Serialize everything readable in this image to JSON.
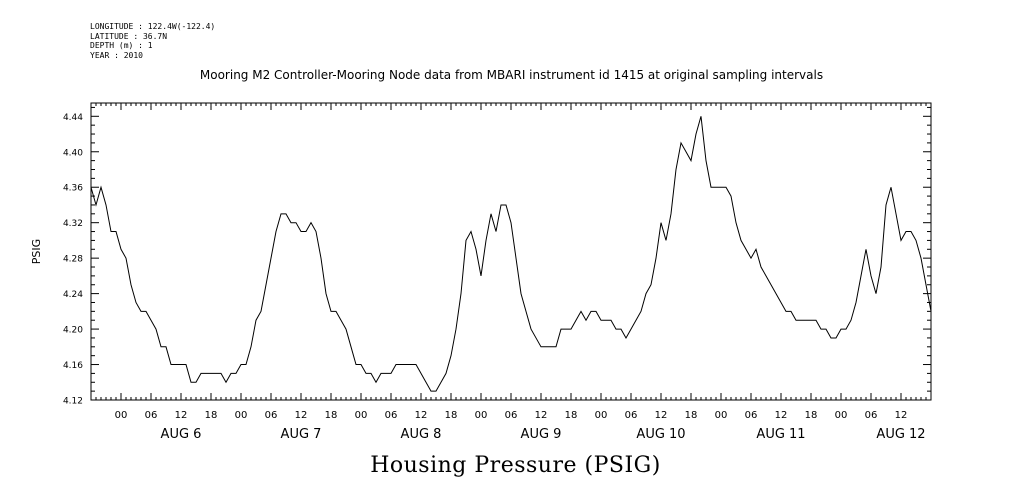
{
  "header": {
    "longitude": "LONGITUDE : 122.4W(-122.4)",
    "latitude": "LATITUDE : 36.7N",
    "depth": "DEPTH (m) : 1",
    "year": "YEAR : 2010"
  },
  "title": "Mooring M2 Controller-Mooring Node data from MBARI instrument id 1415 at original sampling intervals",
  "footer_title": "Housing Pressure (PSIG)",
  "chart_data": {
    "type": "line",
    "title": "Mooring M2 Controller-Mooring Node data from MBARI instrument id 1415 at original sampling intervals",
    "ylabel": "PSIG",
    "xlabel": "",
    "ylim": [
      4.12,
      4.455
    ],
    "yticks": [
      "4.12",
      "4.16",
      "4.20",
      "4.24",
      "4.28",
      "4.32",
      "4.36",
      "4.40",
      "4.44"
    ],
    "xlim_hours_from_aug5_18": [
      0,
      168
    ],
    "hour_tick_labels": [
      "00",
      "06",
      "12",
      "18"
    ],
    "day_labels": [
      "AUG 6",
      "AUG 7",
      "AUG 8",
      "AUG 9",
      "AUG 10",
      "AUG 11",
      "AUG 12"
    ],
    "line_color": "#000000",
    "series": [
      {
        "values": [
          [
            0,
            4.36
          ],
          [
            1,
            4.34
          ],
          [
            2,
            4.36
          ],
          [
            3,
            4.34
          ],
          [
            4,
            4.31
          ],
          [
            5,
            4.31
          ],
          [
            6,
            4.29
          ],
          [
            7,
            4.28
          ],
          [
            8,
            4.25
          ],
          [
            9,
            4.23
          ],
          [
            10,
            4.22
          ],
          [
            11,
            4.22
          ],
          [
            12,
            4.21
          ],
          [
            13,
            4.2
          ],
          [
            14,
            4.18
          ],
          [
            15,
            4.18
          ],
          [
            16,
            4.16
          ],
          [
            17,
            4.16
          ],
          [
            18,
            4.16
          ],
          [
            19,
            4.16
          ],
          [
            20,
            4.14
          ],
          [
            21,
            4.14
          ],
          [
            22,
            4.15
          ],
          [
            23,
            4.15
          ],
          [
            24,
            4.15
          ],
          [
            25,
            4.15
          ],
          [
            26,
            4.15
          ],
          [
            27,
            4.14
          ],
          [
            28,
            4.15
          ],
          [
            29,
            4.15
          ],
          [
            30,
            4.16
          ],
          [
            31,
            4.16
          ],
          [
            32,
            4.18
          ],
          [
            33,
            4.21
          ],
          [
            34,
            4.22
          ],
          [
            35,
            4.25
          ],
          [
            36,
            4.28
          ],
          [
            37,
            4.31
          ],
          [
            38,
            4.33
          ],
          [
            39,
            4.33
          ],
          [
            40,
            4.32
          ],
          [
            41,
            4.32
          ],
          [
            42,
            4.31
          ],
          [
            43,
            4.31
          ],
          [
            44,
            4.32
          ],
          [
            45,
            4.31
          ],
          [
            46,
            4.28
          ],
          [
            47,
            4.24
          ],
          [
            48,
            4.22
          ],
          [
            49,
            4.22
          ],
          [
            50,
            4.21
          ],
          [
            51,
            4.2
          ],
          [
            52,
            4.18
          ],
          [
            53,
            4.16
          ],
          [
            54,
            4.16
          ],
          [
            55,
            4.15
          ],
          [
            56,
            4.15
          ],
          [
            57,
            4.14
          ],
          [
            58,
            4.15
          ],
          [
            59,
            4.15
          ],
          [
            60,
            4.15
          ],
          [
            61,
            4.16
          ],
          [
            62,
            4.16
          ],
          [
            63,
            4.16
          ],
          [
            64,
            4.16
          ],
          [
            65,
            4.16
          ],
          [
            66,
            4.15
          ],
          [
            67,
            4.14
          ],
          [
            68,
            4.13
          ],
          [
            69,
            4.13
          ],
          [
            70,
            4.14
          ],
          [
            71,
            4.15
          ],
          [
            72,
            4.17
          ],
          [
            73,
            4.2
          ],
          [
            74,
            4.24
          ],
          [
            75,
            4.3
          ],
          [
            76,
            4.31
          ],
          [
            77,
            4.29
          ],
          [
            78,
            4.26
          ],
          [
            79,
            4.3
          ],
          [
            80,
            4.33
          ],
          [
            81,
            4.31
          ],
          [
            82,
            4.34
          ],
          [
            83,
            4.34
          ],
          [
            84,
            4.32
          ],
          [
            85,
            4.28
          ],
          [
            86,
            4.24
          ],
          [
            87,
            4.22
          ],
          [
            88,
            4.2
          ],
          [
            89,
            4.19
          ],
          [
            90,
            4.18
          ],
          [
            91,
            4.18
          ],
          [
            92,
            4.18
          ],
          [
            93,
            4.18
          ],
          [
            94,
            4.2
          ],
          [
            95,
            4.2
          ],
          [
            96,
            4.2
          ],
          [
            97,
            4.21
          ],
          [
            98,
            4.22
          ],
          [
            99,
            4.21
          ],
          [
            100,
            4.22
          ],
          [
            101,
            4.22
          ],
          [
            102,
            4.21
          ],
          [
            103,
            4.21
          ],
          [
            104,
            4.21
          ],
          [
            105,
            4.2
          ],
          [
            106,
            4.2
          ],
          [
            107,
            4.19
          ],
          [
            108,
            4.2
          ],
          [
            109,
            4.21
          ],
          [
            110,
            4.22
          ],
          [
            111,
            4.24
          ],
          [
            112,
            4.25
          ],
          [
            113,
            4.28
          ],
          [
            114,
            4.32
          ],
          [
            115,
            4.3
          ],
          [
            116,
            4.33
          ],
          [
            117,
            4.38
          ],
          [
            118,
            4.41
          ],
          [
            119,
            4.4
          ],
          [
            120,
            4.39
          ],
          [
            121,
            4.42
          ],
          [
            122,
            4.44
          ],
          [
            123,
            4.39
          ],
          [
            124,
            4.36
          ],
          [
            125,
            4.36
          ],
          [
            126,
            4.36
          ],
          [
            127,
            4.36
          ],
          [
            128,
            4.35
          ],
          [
            129,
            4.32
          ],
          [
            130,
            4.3
          ],
          [
            131,
            4.29
          ],
          [
            132,
            4.28
          ],
          [
            133,
            4.29
          ],
          [
            134,
            4.27
          ],
          [
            135,
            4.26
          ],
          [
            136,
            4.25
          ],
          [
            137,
            4.24
          ],
          [
            138,
            4.23
          ],
          [
            139,
            4.22
          ],
          [
            140,
            4.22
          ],
          [
            141,
            4.21
          ],
          [
            142,
            4.21
          ],
          [
            143,
            4.21
          ],
          [
            144,
            4.21
          ],
          [
            145,
            4.21
          ],
          [
            146,
            4.2
          ],
          [
            147,
            4.2
          ],
          [
            148,
            4.19
          ],
          [
            149,
            4.19
          ],
          [
            150,
            4.2
          ],
          [
            151,
            4.2
          ],
          [
            152,
            4.21
          ],
          [
            153,
            4.23
          ],
          [
            154,
            4.26
          ],
          [
            155,
            4.29
          ],
          [
            156,
            4.26
          ],
          [
            157,
            4.24
          ],
          [
            158,
            4.27
          ],
          [
            159,
            4.34
          ],
          [
            160,
            4.36
          ],
          [
            161,
            4.33
          ],
          [
            162,
            4.3
          ],
          [
            163,
            4.31
          ],
          [
            164,
            4.31
          ],
          [
            165,
            4.3
          ],
          [
            166,
            4.28
          ],
          [
            167,
            4.25
          ],
          [
            168,
            4.22
          ]
        ]
      }
    ]
  }
}
